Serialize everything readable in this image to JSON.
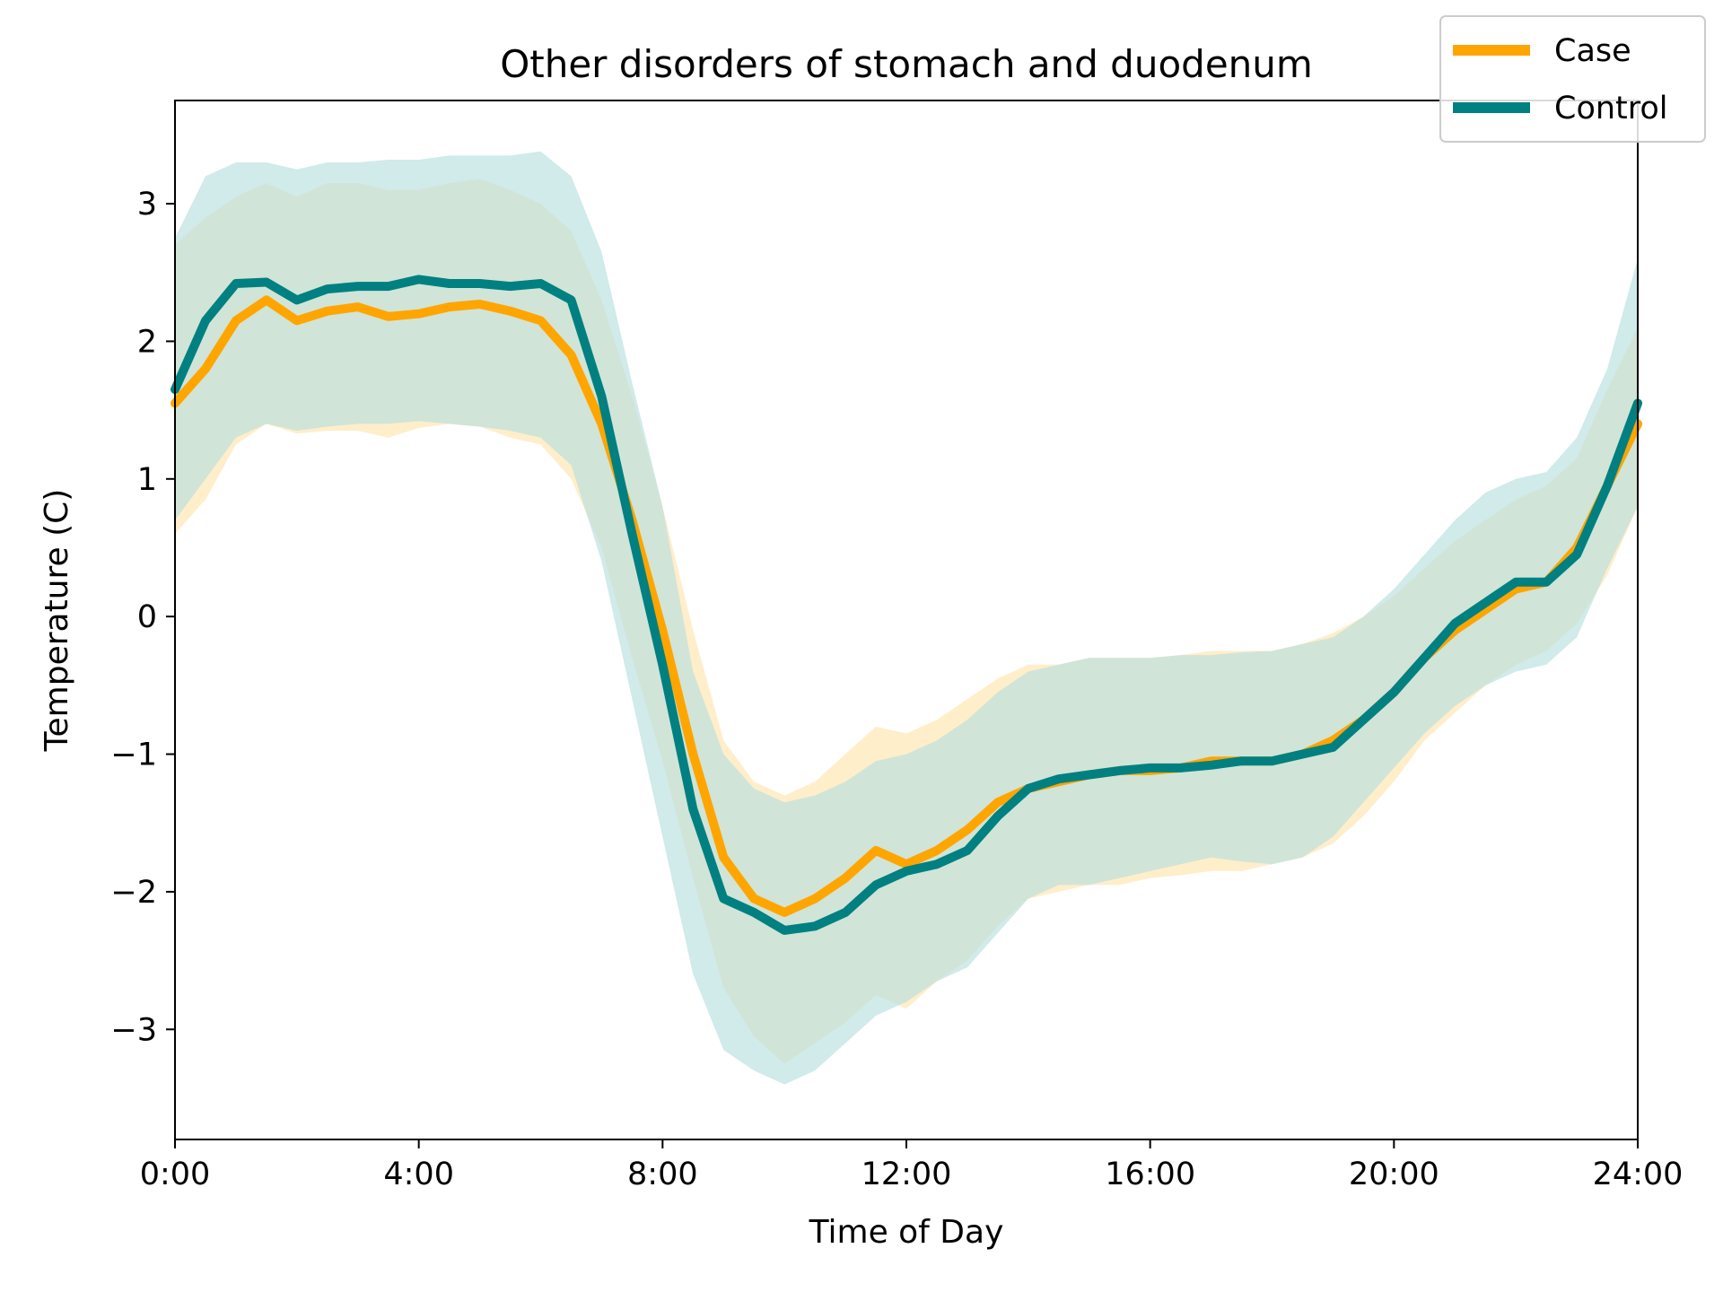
{
  "chart_data": {
    "type": "line",
    "title": "Other disorders of stomach and duodenum",
    "xlabel": "Time of Day",
    "ylabel": "Temperature (C)",
    "xlim": [
      0,
      24
    ],
    "ylim": [
      -3.8,
      3.75
    ],
    "x_ticks": [
      0,
      4,
      8,
      12,
      16,
      20,
      24
    ],
    "x_tick_labels": [
      "0:00",
      "4:00",
      "8:00",
      "12:00",
      "16:00",
      "20:00",
      "24:00"
    ],
    "y_ticks": [
      -3,
      -2,
      -1,
      0,
      1,
      2,
      3
    ],
    "y_tick_labels": [
      "−3",
      "−2",
      "−1",
      "0",
      "1",
      "2",
      "3"
    ],
    "legend": {
      "position": "top-right"
    },
    "grid": false,
    "series": [
      {
        "name": "Case",
        "color": "#FFA500",
        "band_color": "#FFE8B8",
        "x": [
          0,
          0.5,
          1,
          1.5,
          2,
          2.5,
          3,
          3.5,
          4,
          4.5,
          5,
          5.5,
          6,
          6.5,
          7,
          7.5,
          8,
          8.5,
          9,
          9.5,
          10,
          10.5,
          11,
          11.5,
          12,
          12.5,
          13,
          13.5,
          14,
          14.5,
          15,
          15.5,
          16,
          16.5,
          17,
          17.5,
          18,
          18.5,
          19,
          19.5,
          20,
          20.5,
          21,
          21.5,
          22,
          22.5,
          23,
          23.5,
          24
        ],
        "y": [
          1.55,
          1.8,
          2.15,
          2.3,
          2.15,
          2.22,
          2.25,
          2.18,
          2.2,
          2.25,
          2.27,
          2.22,
          2.15,
          1.9,
          1.4,
          0.7,
          -0.1,
          -1.0,
          -1.75,
          -2.05,
          -2.15,
          -2.05,
          -1.9,
          -1.7,
          -1.8,
          -1.7,
          -1.55,
          -1.35,
          -1.25,
          -1.2,
          -1.15,
          -1.12,
          -1.12,
          -1.1,
          -1.05,
          -1.05,
          -1.05,
          -1.0,
          -0.9,
          -0.75,
          -0.55,
          -0.3,
          -0.1,
          0.05,
          0.2,
          0.25,
          0.5,
          0.95,
          1.4
        ],
        "lower": [
          0.6,
          0.85,
          1.25,
          1.4,
          1.33,
          1.35,
          1.35,
          1.3,
          1.37,
          1.4,
          1.38,
          1.3,
          1.25,
          1.0,
          0.5,
          -0.3,
          -1.05,
          -1.9,
          -2.7,
          -3.05,
          -3.25,
          -3.1,
          -2.95,
          -2.75,
          -2.85,
          -2.65,
          -2.5,
          -2.25,
          -2.05,
          -2.0,
          -1.95,
          -1.95,
          -1.9,
          -1.88,
          -1.85,
          -1.85,
          -1.8,
          -1.75,
          -1.65,
          -1.45,
          -1.2,
          -0.9,
          -0.7,
          -0.5,
          -0.35,
          -0.25,
          -0.05,
          0.3,
          0.8
        ],
        "upper": [
          2.7,
          2.9,
          3.05,
          3.15,
          3.05,
          3.15,
          3.15,
          3.1,
          3.1,
          3.15,
          3.18,
          3.1,
          3.0,
          2.8,
          2.3,
          1.6,
          0.8,
          -0.1,
          -0.9,
          -1.2,
          -1.3,
          -1.2,
          -1.0,
          -0.8,
          -0.85,
          -0.75,
          -0.6,
          -0.45,
          -0.35,
          -0.35,
          -0.3,
          -0.3,
          -0.3,
          -0.28,
          -0.25,
          -0.25,
          -0.25,
          -0.2,
          -0.12,
          0.0,
          0.15,
          0.35,
          0.55,
          0.7,
          0.85,
          0.95,
          1.15,
          1.65,
          2.1
        ]
      },
      {
        "name": "Control",
        "color": "#008080",
        "band_color": "#B8DEDE",
        "x": [
          0,
          0.5,
          1,
          1.5,
          2,
          2.5,
          3,
          3.5,
          4,
          4.5,
          5,
          5.5,
          6,
          6.5,
          7,
          7.5,
          8,
          8.5,
          9,
          9.5,
          10,
          10.5,
          11,
          11.5,
          12,
          12.5,
          13,
          13.5,
          14,
          14.5,
          15,
          15.5,
          16,
          16.5,
          17,
          17.5,
          18,
          18.5,
          19,
          19.5,
          20,
          20.5,
          21,
          21.5,
          22,
          22.5,
          23,
          23.5,
          24
        ],
        "y": [
          1.65,
          2.15,
          2.42,
          2.43,
          2.3,
          2.38,
          2.4,
          2.4,
          2.45,
          2.42,
          2.42,
          2.4,
          2.42,
          2.3,
          1.6,
          0.6,
          -0.35,
          -1.4,
          -2.05,
          -2.15,
          -2.28,
          -2.25,
          -2.15,
          -1.95,
          -1.85,
          -1.8,
          -1.7,
          -1.45,
          -1.25,
          -1.18,
          -1.15,
          -1.12,
          -1.1,
          -1.1,
          -1.08,
          -1.05,
          -1.05,
          -1.0,
          -0.95,
          -0.75,
          -0.55,
          -0.3,
          -0.05,
          0.1,
          0.25,
          0.25,
          0.45,
          0.95,
          1.55
        ],
        "lower": [
          0.7,
          1.0,
          1.3,
          1.4,
          1.35,
          1.38,
          1.4,
          1.4,
          1.42,
          1.4,
          1.38,
          1.35,
          1.3,
          1.1,
          0.4,
          -0.6,
          -1.6,
          -2.6,
          -3.15,
          -3.3,
          -3.4,
          -3.3,
          -3.1,
          -2.9,
          -2.8,
          -2.65,
          -2.55,
          -2.3,
          -2.05,
          -1.95,
          -1.95,
          -1.9,
          -1.85,
          -1.8,
          -1.75,
          -1.78,
          -1.8,
          -1.75,
          -1.6,
          -1.35,
          -1.1,
          -0.85,
          -0.65,
          -0.5,
          -0.4,
          -0.35,
          -0.15,
          0.35,
          0.8
        ],
        "upper": [
          2.75,
          3.2,
          3.3,
          3.3,
          3.25,
          3.3,
          3.3,
          3.32,
          3.32,
          3.35,
          3.35,
          3.35,
          3.38,
          3.2,
          2.65,
          1.7,
          0.8,
          -0.4,
          -1.0,
          -1.25,
          -1.35,
          -1.3,
          -1.2,
          -1.05,
          -1.0,
          -0.9,
          -0.75,
          -0.55,
          -0.4,
          -0.35,
          -0.3,
          -0.3,
          -0.3,
          -0.28,
          -0.28,
          -0.26,
          -0.25,
          -0.2,
          -0.15,
          0.0,
          0.2,
          0.45,
          0.7,
          0.9,
          1.0,
          1.05,
          1.3,
          1.8,
          2.6
        ]
      }
    ]
  }
}
